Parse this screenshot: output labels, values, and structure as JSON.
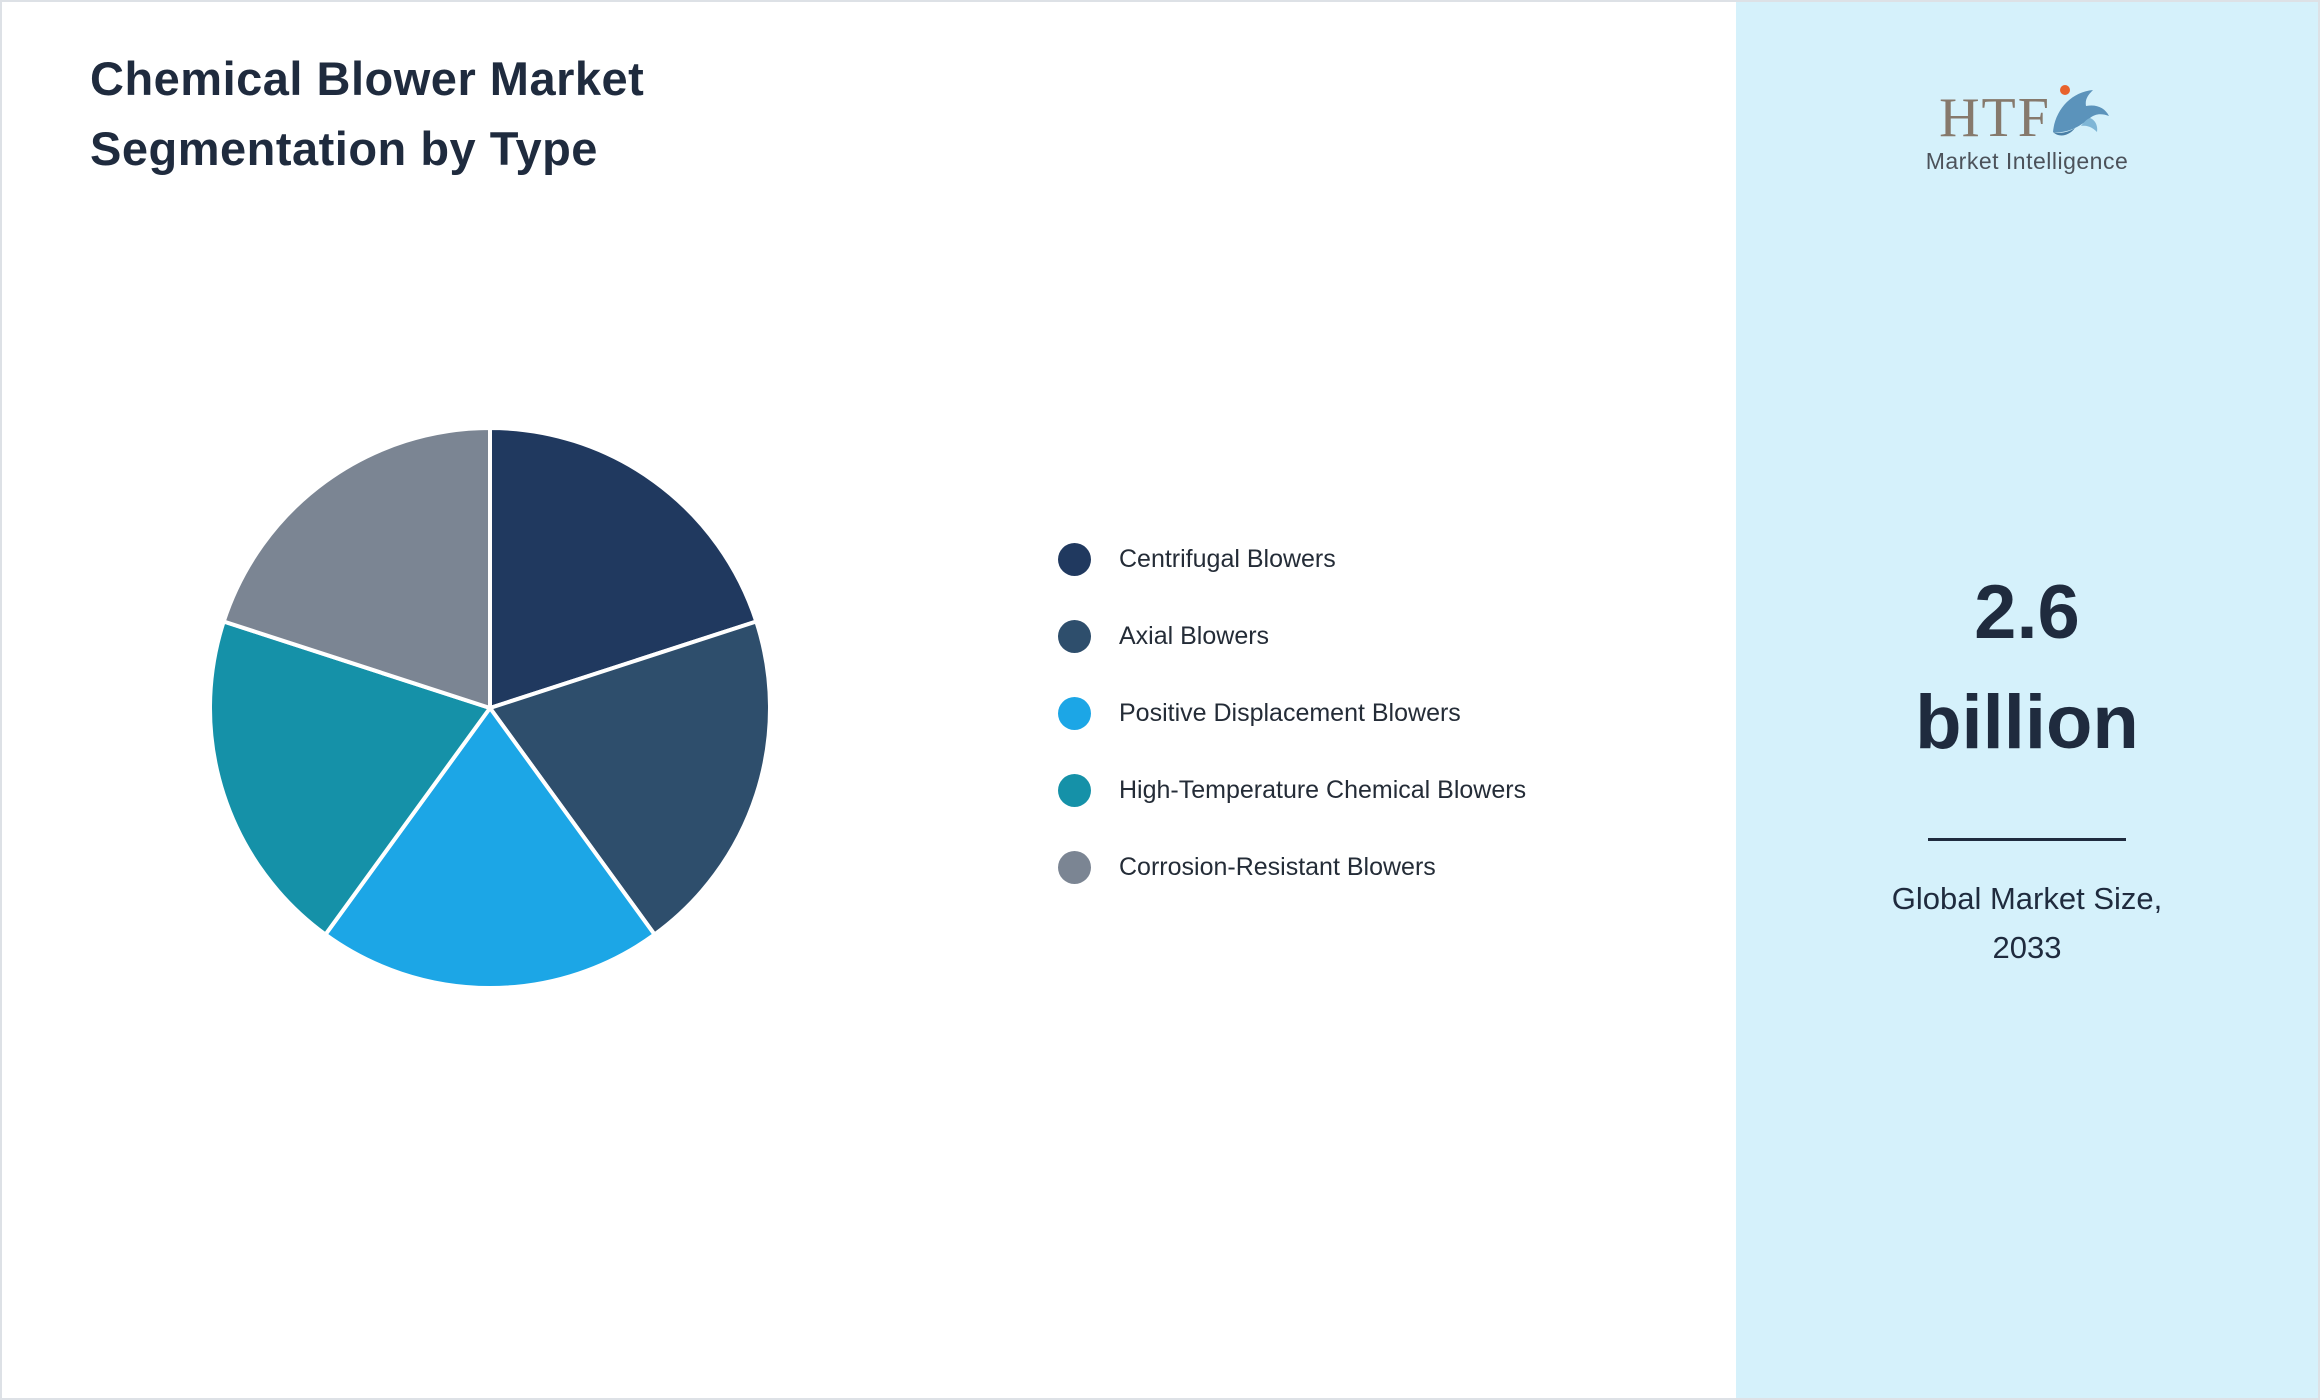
{
  "title": {
    "line1": "Chemical Blower Market",
    "line2": "Segmentation by Type"
  },
  "chart_data": {
    "type": "pie",
    "title": "Chemical Blower Market Segmentation by Type",
    "categories": [
      "Centrifugal Blowers",
      "Axial Blowers",
      "Positive Displacement Blowers",
      "High-Temperature Chemical Blowers",
      "Corrosion-Resistant Blowers"
    ],
    "values": [
      20,
      20,
      20,
      20,
      20
    ],
    "colors": [
      "#20395f",
      "#2e4e6c",
      "#1ca6e6",
      "#1591a8",
      "#7b8593"
    ],
    "start_angle_deg": 0,
    "direction": "clockwise",
    "legend_position": "right",
    "slice_gap_color": "#ffffff"
  },
  "sidebar": {
    "background": "#d5f1fb",
    "logo": {
      "text": "HTF",
      "subtext": "Market Intelligence"
    },
    "market_size_value": "2.6",
    "market_size_unit": "billion",
    "caption_line1": "Global Market Size,",
    "caption_line2": "2033"
  }
}
